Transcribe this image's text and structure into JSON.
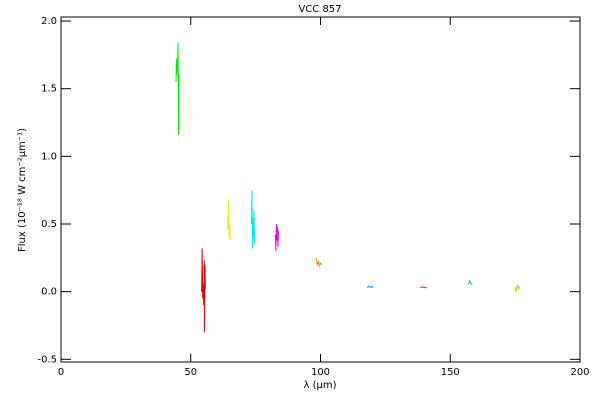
{
  "chart_data": {
    "type": "line",
    "title": "VCC 857",
    "x_label": "λ (μm)",
    "y_label": "Flux (10⁻¹⁸ W cm⁻²μm⁻¹)",
    "xlim": [
      0,
      200
    ],
    "xticks": [
      0,
      50,
      100,
      150,
      200
    ],
    "ylim": [
      -0.52,
      2.03
    ],
    "yticks": [
      -0.5,
      {
        "value": 0,
        "label": "0.0"
      },
      0.5,
      {
        "value": 1,
        "label": "1.0"
      },
      1.5,
      {
        "value": 2,
        "label": "2.0"
      }
    ],
    "grid": false,
    "series": [
      {
        "color": "#00ee00",
        "x": [
          44.3,
          44.5,
          44.7,
          44.9,
          45.1,
          45.2,
          45.3,
          45.4,
          45.6
        ],
        "values": [
          1.55,
          1.72,
          1.6,
          1.65,
          1.84,
          1.55,
          1.16,
          1.6,
          1.55
        ]
      },
      {
        "color": "#dd0000",
        "x": [
          54.2,
          54.4,
          54.6,
          54.8,
          55.0,
          55.2,
          55.3,
          55.5,
          55.6
        ],
        "values": [
          0.0,
          0.32,
          -0.05,
          0.05,
          -0.1,
          0.23,
          -0.3,
          0.2,
          0.02
        ]
      },
      {
        "color": "#eeee00",
        "x": [
          64.2,
          64.4,
          64.6,
          64.8,
          65.0,
          65.2
        ],
        "values": [
          0.55,
          0.45,
          0.68,
          0.4,
          0.5,
          0.38
        ]
      },
      {
        "color": "#00eeee",
        "x": [
          73.4,
          73.6,
          73.8,
          74.0,
          74.2,
          74.4,
          74.6,
          74.8
        ],
        "values": [
          0.5,
          0.75,
          0.32,
          0.55,
          0.4,
          0.6,
          0.35,
          0.45
        ]
      },
      {
        "color": "#ee00ee",
        "x": [
          82.6,
          82.8,
          83.0,
          83.2,
          83.4,
          83.6,
          83.8
        ],
        "values": [
          0.42,
          0.3,
          0.5,
          0.38,
          0.48,
          0.33,
          0.45
        ]
      },
      {
        "color": "#e09000",
        "x": [
          98.4,
          98.8,
          99.2,
          99.6,
          100.0,
          100.4
        ],
        "values": [
          0.25,
          0.2,
          0.22,
          0.19,
          0.21,
          0.2
        ]
      },
      {
        "color": "#0090e0",
        "x": [
          118.0,
          118.8,
          119.6,
          120.4
        ],
        "values": [
          0.03,
          0.04,
          0.03,
          0.04
        ]
      },
      {
        "color": "#ee0090",
        "x": [
          138.5,
          139.3,
          140.1,
          140.9
        ],
        "values": [
          0.03,
          0.035,
          0.03,
          0.03
        ]
      },
      {
        "color": "#00c0a0",
        "x": [
          157.0,
          157.5,
          158.0,
          158.5
        ],
        "values": [
          0.05,
          0.08,
          0.06,
          0.05
        ]
      },
      {
        "color": "#c0d000",
        "x": [
          174.8,
          175.3,
          175.8,
          176.3,
          176.8
        ],
        "values": [
          0.03,
          0.0,
          0.05,
          0.02,
          0.04
        ]
      }
    ]
  }
}
